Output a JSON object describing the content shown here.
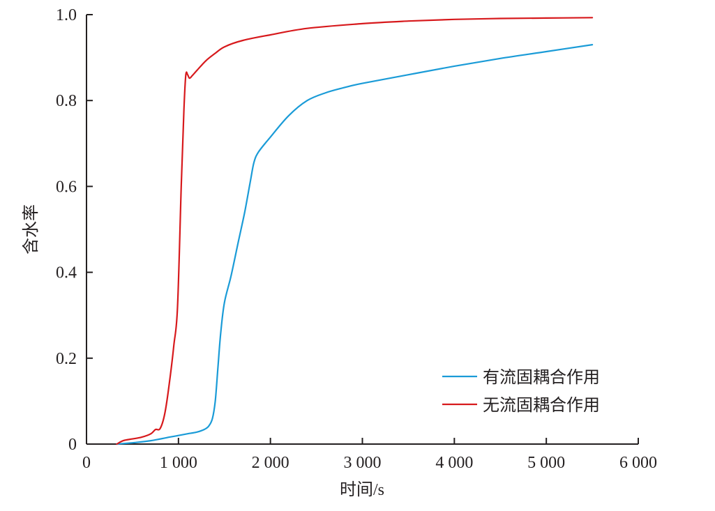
{
  "chart_data": {
    "type": "line",
    "xlabel": "时间/s",
    "ylabel": "含水率",
    "xlim": [
      0,
      6000
    ],
    "ylim": [
      0,
      1.0
    ],
    "x_ticks": [
      0,
      1000,
      2000,
      3000,
      4000,
      5000,
      6000
    ],
    "x_tick_labels": [
      "0",
      "1 000",
      "2 000",
      "3 000",
      "4 000",
      "5 000",
      "6 000"
    ],
    "y_ticks": [
      0,
      0.2,
      0.4,
      0.6,
      0.8,
      1.0
    ],
    "y_tick_labels": [
      "0",
      "0.2",
      "0.4",
      "0.6",
      "0.8",
      "1.0"
    ],
    "grid": false,
    "legend_position": "bottom-right",
    "series": [
      {
        "name": "有流固耦合作用",
        "color": "#1a9bd7",
        "points": [
          [
            330,
            0.0
          ],
          [
            500,
            0.003
          ],
          [
            700,
            0.008
          ],
          [
            900,
            0.016
          ],
          [
            1000,
            0.02
          ],
          [
            1100,
            0.024
          ],
          [
            1200,
            0.028
          ],
          [
            1280,
            0.034
          ],
          [
            1330,
            0.042
          ],
          [
            1370,
            0.06
          ],
          [
            1400,
            0.1
          ],
          [
            1430,
            0.18
          ],
          [
            1460,
            0.26
          ],
          [
            1500,
            0.33
          ],
          [
            1570,
            0.39
          ],
          [
            1650,
            0.47
          ],
          [
            1720,
            0.54
          ],
          [
            1780,
            0.61
          ],
          [
            1820,
            0.655
          ],
          [
            1870,
            0.68
          ],
          [
            2000,
            0.715
          ],
          [
            2200,
            0.765
          ],
          [
            2400,
            0.8
          ],
          [
            2600,
            0.818
          ],
          [
            2800,
            0.83
          ],
          [
            3000,
            0.84
          ],
          [
            3500,
            0.86
          ],
          [
            4000,
            0.88
          ],
          [
            4500,
            0.898
          ],
          [
            5000,
            0.914
          ],
          [
            5500,
            0.93
          ]
        ]
      },
      {
        "name": "无流固耦合作用",
        "color": "#d7191c",
        "points": [
          [
            330,
            0.0
          ],
          [
            400,
            0.008
          ],
          [
            500,
            0.012
          ],
          [
            600,
            0.016
          ],
          [
            700,
            0.024
          ],
          [
            750,
            0.034
          ],
          [
            800,
            0.036
          ],
          [
            850,
            0.07
          ],
          [
            900,
            0.14
          ],
          [
            950,
            0.23
          ],
          [
            990,
            0.32
          ],
          [
            1030,
            0.6
          ],
          [
            1060,
            0.78
          ],
          [
            1080,
            0.86
          ],
          [
            1100,
            0.86
          ],
          [
            1120,
            0.852
          ],
          [
            1150,
            0.858
          ],
          [
            1200,
            0.87
          ],
          [
            1300,
            0.893
          ],
          [
            1400,
            0.91
          ],
          [
            1500,
            0.925
          ],
          [
            1700,
            0.94
          ],
          [
            2000,
            0.953
          ],
          [
            2400,
            0.968
          ],
          [
            3000,
            0.979
          ],
          [
            3500,
            0.985
          ],
          [
            4000,
            0.989
          ],
          [
            4500,
            0.991
          ],
          [
            5000,
            0.992
          ],
          [
            5500,
            0.993
          ]
        ]
      }
    ]
  }
}
